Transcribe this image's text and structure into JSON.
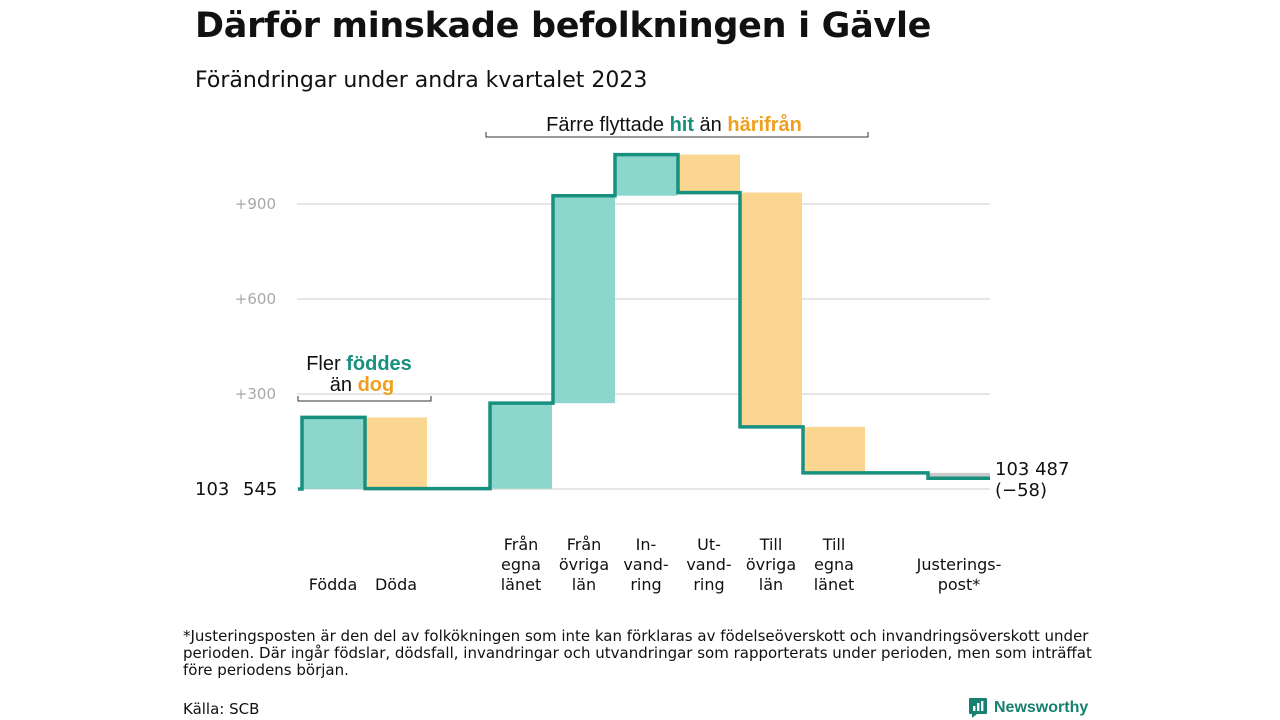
{
  "title": "Därför minskade befolkningen i Gävle",
  "subtitle": "Förändringar under andra kvartalet 2023",
  "chart_data": {
    "type": "waterfall",
    "baseline": 103545,
    "baseline_label_parts": [
      "103",
      "545"
    ],
    "y_ticks": [
      "+300",
      "+600",
      "+900"
    ],
    "y_tick_values": [
      300,
      600,
      900
    ],
    "ylim": [
      -70,
      1100
    ],
    "grid": true,
    "steps": [
      {
        "id": "fodda",
        "label_lines": [
          "Födda"
        ],
        "change": 226,
        "kind": "in"
      },
      {
        "id": "doda",
        "label_lines": [
          "Döda"
        ],
        "change": -225,
        "kind": "out"
      },
      {
        "id": "fran-egna-lanet",
        "label_lines": [
          "Från",
          "egna",
          "länet"
        ],
        "change": 270,
        "kind": "in"
      },
      {
        "id": "fran-ovriga-lan",
        "label_lines": [
          "Från",
          "övriga",
          "län"
        ],
        "change": 655,
        "kind": "in"
      },
      {
        "id": "invandring",
        "label_lines": [
          "In-",
          "vand-",
          "ring"
        ],
        "change": 130,
        "kind": "in"
      },
      {
        "id": "utvandring",
        "label_lines": [
          "Ut-",
          "vand-",
          "ring"
        ],
        "change": -120,
        "kind": "out"
      },
      {
        "id": "till-ovriga-lan",
        "label_lines": [
          "Till",
          "övriga",
          "län"
        ],
        "change": -740,
        "kind": "out"
      },
      {
        "id": "till-egna-lanet",
        "label_lines": [
          "Till",
          "egna",
          "länet"
        ],
        "change": -145,
        "kind": "out"
      },
      {
        "id": "justeringspost",
        "label_lines": [
          "Justerings-",
          "post*"
        ],
        "change": -17,
        "kind": "adjustment"
      }
    ],
    "end_value_label": "103 487",
    "end_change_label": "(−58)",
    "annotations": {
      "births": {
        "line1": "Fler ",
        "strong1": "föddes",
        "line2": "än ",
        "strong2": "dog"
      },
      "migration": {
        "text1": "Färre flyttade ",
        "strong1": "hit",
        "text2": " än ",
        "strong2": "härifrån"
      }
    },
    "colors": {
      "in": "#8dd6cb",
      "out": "#fad690",
      "adjustment": "#c9c9c9",
      "line": "#17917f",
      "in_text": "#17917f",
      "out_text": "#f0a020",
      "grid": "#dddddd"
    }
  },
  "footnote": "*Justeringsposten är den del av folkökningen som inte kan förklaras av födelseöverskott och invandringsöverskott under perioden. Där ingår födslar, dödsfall, invandringar och utvandringar som rapporterats under perioden, men som inträffat före periodens början.",
  "source": "Källa: SCB",
  "logo": {
    "text": "Newsworthy",
    "icon": "bar-chart-icon",
    "color": "#17806f"
  }
}
